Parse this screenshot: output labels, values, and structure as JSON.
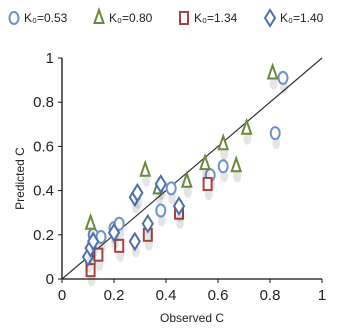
{
  "chart_data": {
    "type": "scatter",
    "title": "",
    "xlabel": "Observed C",
    "ylabel": "Predicted C",
    "xlim": [
      0,
      1
    ],
    "ylim": [
      0,
      1
    ],
    "x_ticks": [
      "0",
      "0.2",
      "0.4",
      "0.6",
      "0.8",
      "1"
    ],
    "y_ticks": [
      "0",
      "0.2",
      "0.4",
      "0.6",
      "0.8",
      "1"
    ],
    "grid": false,
    "legend_position": "top",
    "reference_line": "1:1",
    "series": [
      {
        "name": "K₀=0.53",
        "marker": "circle",
        "color": "#6f93c7",
        "points": [
          {
            "x": 0.11,
            "y": 0.08
          },
          {
            "x": 0.12,
            "y": 0.2
          },
          {
            "x": 0.15,
            "y": 0.19
          },
          {
            "x": 0.2,
            "y": 0.23
          },
          {
            "x": 0.22,
            "y": 0.25
          },
          {
            "x": 0.38,
            "y": 0.31
          },
          {
            "x": 0.42,
            "y": 0.41
          },
          {
            "x": 0.57,
            "y": 0.47
          },
          {
            "x": 0.62,
            "y": 0.51
          },
          {
            "x": 0.82,
            "y": 0.66
          },
          {
            "x": 0.85,
            "y": 0.91
          }
        ]
      },
      {
        "name": "K₀=0.80",
        "marker": "triangle",
        "color": "#6a8a3a",
        "points": [
          {
            "x": 0.11,
            "y": 0.25
          },
          {
            "x": 0.32,
            "y": 0.49
          },
          {
            "x": 0.37,
            "y": 0.41
          },
          {
            "x": 0.48,
            "y": 0.44
          },
          {
            "x": 0.55,
            "y": 0.52
          },
          {
            "x": 0.62,
            "y": 0.61
          },
          {
            "x": 0.67,
            "y": 0.51
          },
          {
            "x": 0.71,
            "y": 0.68
          },
          {
            "x": 0.81,
            "y": 0.93
          }
        ]
      },
      {
        "name": "K₀=1.34",
        "marker": "square",
        "color": "#a8423e",
        "points": [
          {
            "x": 0.11,
            "y": 0.04
          },
          {
            "x": 0.14,
            "y": 0.11
          },
          {
            "x": 0.22,
            "y": 0.15
          },
          {
            "x": 0.33,
            "y": 0.2
          },
          {
            "x": 0.45,
            "y": 0.3
          },
          {
            "x": 0.56,
            "y": 0.43
          }
        ]
      },
      {
        "name": "K₀=1.40",
        "marker": "diamond",
        "color": "#4d6fb0",
        "points": [
          {
            "x": 0.1,
            "y": 0.1
          },
          {
            "x": 0.11,
            "y": 0.14
          },
          {
            "x": 0.12,
            "y": 0.17
          },
          {
            "x": 0.2,
            "y": 0.21
          },
          {
            "x": 0.28,
            "y": 0.17
          },
          {
            "x": 0.28,
            "y": 0.37
          },
          {
            "x": 0.29,
            "y": 0.39
          },
          {
            "x": 0.33,
            "y": 0.25
          },
          {
            "x": 0.38,
            "y": 0.43
          },
          {
            "x": 0.45,
            "y": 0.33
          }
        ]
      }
    ]
  }
}
